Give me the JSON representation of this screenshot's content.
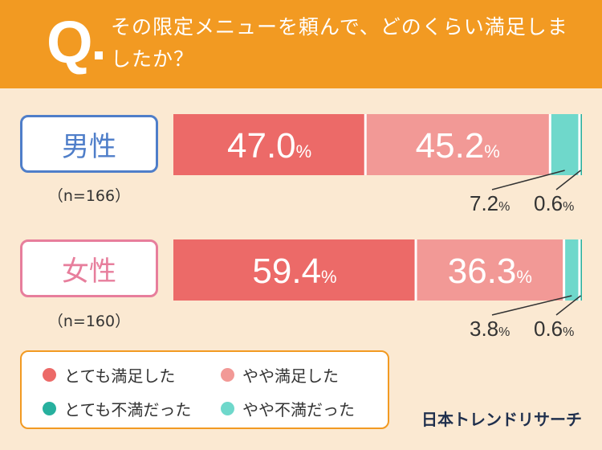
{
  "question": {
    "mark": "Q",
    "text": "その限定メニューを頼んで、どのくらい満足しましたか？"
  },
  "colors": {
    "header": "#f29a22",
    "very_satisfied": "#ec6a68",
    "somewhat_satisfied": "#f29996",
    "very_dissatisfied": "#27b09e",
    "somewhat_dissatisfied": "#6fd8cb",
    "male_border": "#4f7ec9",
    "male_text": "#4f7ec9",
    "female_border": "#e77e9c",
    "female_text": "#e77e9c"
  },
  "chart_data": {
    "type": "bar",
    "orientation": "horizontal",
    "stacked": true,
    "unit": "%",
    "categories": [
      "男性",
      "女性"
    ],
    "category_notes": [
      "（n=166）",
      "（n=160）"
    ],
    "series": [
      {
        "name": "とても満足した",
        "values": [
          47.0,
          59.4
        ]
      },
      {
        "name": "やや満足した",
        "values": [
          45.2,
          36.3
        ]
      },
      {
        "name": "やや不満だった",
        "values": [
          7.2,
          3.8
        ]
      },
      {
        "name": "とても不満だった",
        "values": [
          0.6,
          0.6
        ]
      }
    ],
    "legend_position": "bottom-left"
  },
  "legend": {
    "items": [
      "とても満足した",
      "やや満足した",
      "とても不満だった",
      "やや不満だった"
    ]
  },
  "brand": "日本トレンドリサーチ"
}
